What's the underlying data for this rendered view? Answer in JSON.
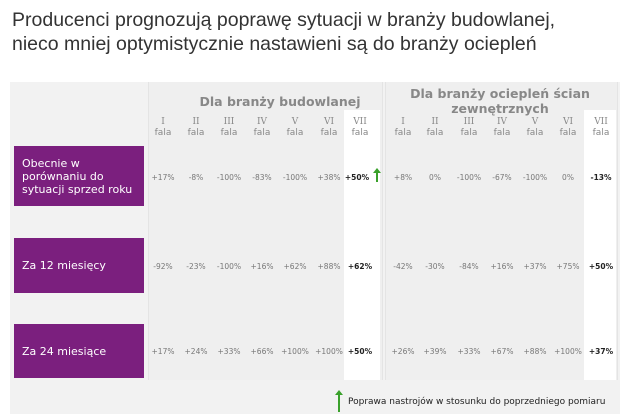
{
  "title": [
    "Producenci prognozują poprawę sytuacji w branży budowlanej,",
    "nieco mniej optymistycznie nastawieni są do branży ociepleń"
  ],
  "panels": [
    {
      "title": "Dla branży budowlanej",
      "waves": [
        "I",
        "II",
        "III",
        "IV",
        "V",
        "VI",
        "VII"
      ],
      "rows": [
        [
          "+17%",
          "-8%",
          "-100%",
          "-83%",
          "-100%",
          "+38%",
          "+50%"
        ],
        [
          "-92%",
          "-23%",
          "-100%",
          "+16%",
          "+62%",
          "+88%",
          "+62%"
        ],
        [
          "+17%",
          "+24%",
          "+33%",
          "+66%",
          "+100%",
          "+100%",
          "+50%"
        ]
      ]
    },
    {
      "title": "Dla branży ociepleń ścian zewnętrznych",
      "waves": [
        "I",
        "II",
        "III",
        "IV",
        "V",
        "VI",
        "VII"
      ],
      "rows": [
        [
          "+8%",
          "0%",
          "-100%",
          "-67%",
          "-100%",
          "0%",
          "-13%"
        ],
        [
          "-42%",
          "-30%",
          "-84%",
          "+16%",
          "+37%",
          "+75%",
          "+50%"
        ],
        [
          "+26%",
          "+39%",
          "+33%",
          "+67%",
          "+88%",
          "+100%",
          "+37%"
        ]
      ]
    }
  ],
  "wave_suffix": "fala",
  "row_labels": [
    "Obecnie w porównaniu do sytuacji sprzed roku",
    "Za 12 miesięcy",
    "Za 24 miesiące"
  ],
  "legend": "Poprawa nastrojów w stosunku do poprzedniego pomiaru",
  "colors": {
    "row_label": "#7b1f7e",
    "arrow": "#3aa12b"
  }
}
